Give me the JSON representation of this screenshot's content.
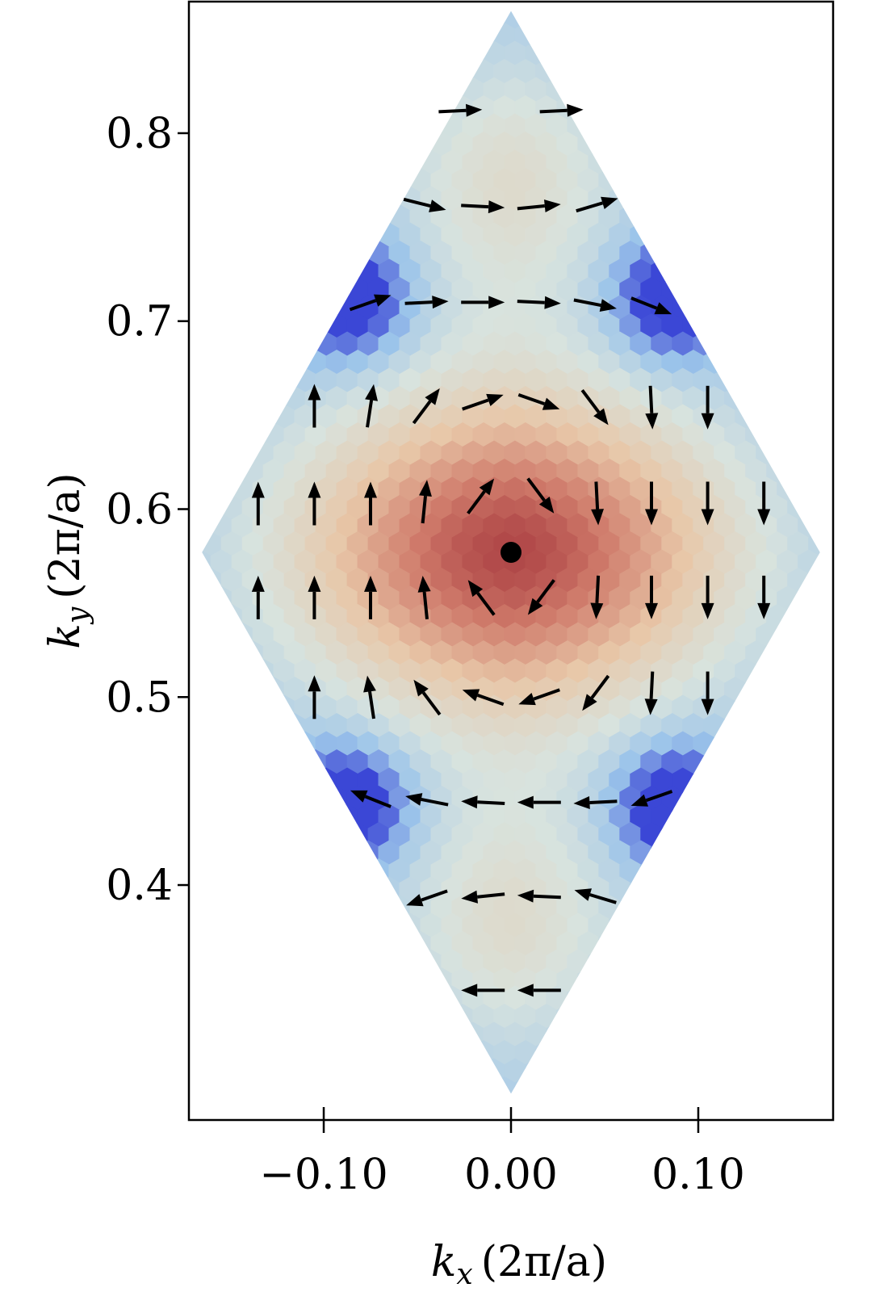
{
  "chart_data": {
    "type": "heatmap",
    "title": "",
    "subtitle": "",
    "xlabel": {
      "var": "k",
      "sub": "x",
      "unit": "(2π/a)"
    },
    "ylabel": {
      "var": "k",
      "sub": "y",
      "unit": "(2π/a)"
    },
    "xlim": [
      -0.172,
      0.172
    ],
    "ylim": [
      0.275,
      0.87
    ],
    "xticks": [
      -0.1,
      0.0,
      0.1
    ],
    "xtick_labels": [
      "−0.10",
      "0.00",
      "0.10"
    ],
    "yticks": [
      0.4,
      0.5,
      0.6,
      0.7,
      0.8
    ],
    "ytick_labels": [
      "0.4",
      "0.5",
      "0.6",
      "0.7",
      "0.8"
    ],
    "grid": false,
    "legend": "none",
    "colormap": [
      "#3b47d6",
      "#9bc4ea",
      "#d8e3de",
      "#e8c7a8",
      "#cf7a6a",
      "#9a2430"
    ],
    "domain_rhombus": {
      "vertices": [
        [
          0.0,
          0.865
        ],
        [
          0.165,
          0.577
        ],
        [
          0.0,
          0.289
        ],
        [
          -0.165,
          0.577
        ]
      ]
    },
    "center_point": {
      "x": 0.0,
      "y": 0.577,
      "color": "#000000"
    },
    "vector_field": [
      {
        "x": -0.027,
        "y": 0.812,
        "u": 1,
        "v": 0.05
      },
      {
        "x": 0.027,
        "y": 0.812,
        "u": 1,
        "v": 0.05
      },
      {
        "x": -0.046,
        "y": 0.762,
        "u": 1,
        "v": -0.25
      },
      {
        "x": -0.015,
        "y": 0.761,
        "u": 1,
        "v": -0.05
      },
      {
        "x": 0.015,
        "y": 0.761,
        "u": 1,
        "v": 0.1
      },
      {
        "x": 0.046,
        "y": 0.762,
        "u": 1,
        "v": 0.3
      },
      {
        "x": -0.075,
        "y": 0.71,
        "u": 1,
        "v": 0.35
      },
      {
        "x": -0.045,
        "y": 0.71,
        "u": 1,
        "v": 0.05
      },
      {
        "x": -0.015,
        "y": 0.71,
        "u": 1,
        "v": 0.0
      },
      {
        "x": 0.015,
        "y": 0.71,
        "u": 1,
        "v": -0.05
      },
      {
        "x": 0.045,
        "y": 0.709,
        "u": 1,
        "v": -0.2
      },
      {
        "x": 0.075,
        "y": 0.708,
        "u": 1,
        "v": -0.4
      },
      {
        "x": -0.105,
        "y": 0.655,
        "u": 0,
        "v": 1
      },
      {
        "x": -0.075,
        "y": 0.655,
        "u": 0.15,
        "v": 1
      },
      {
        "x": -0.045,
        "y": 0.655,
        "u": 0.6,
        "v": 0.8
      },
      {
        "x": -0.015,
        "y": 0.657,
        "u": 1,
        "v": 0.35
      },
      {
        "x": 0.015,
        "y": 0.657,
        "u": 1,
        "v": -0.35
      },
      {
        "x": 0.045,
        "y": 0.654,
        "u": 0.6,
        "v": -0.8
      },
      {
        "x": 0.075,
        "y": 0.654,
        "u": 0.05,
        "v": -1
      },
      {
        "x": 0.105,
        "y": 0.654,
        "u": 0,
        "v": -1
      },
      {
        "x": -0.135,
        "y": 0.603,
        "u": 0,
        "v": 1
      },
      {
        "x": -0.105,
        "y": 0.603,
        "u": 0,
        "v": 1
      },
      {
        "x": -0.075,
        "y": 0.603,
        "u": 0,
        "v": 1
      },
      {
        "x": -0.046,
        "y": 0.604,
        "u": 0.1,
        "v": 1
      },
      {
        "x": -0.016,
        "y": 0.607,
        "u": 0.6,
        "v": 0.8
      },
      {
        "x": 0.016,
        "y": 0.607,
        "u": 0.6,
        "v": -0.8
      },
      {
        "x": 0.046,
        "y": 0.603,
        "u": 0.05,
        "v": -1
      },
      {
        "x": 0.075,
        "y": 0.603,
        "u": 0,
        "v": -1
      },
      {
        "x": 0.105,
        "y": 0.603,
        "u": 0,
        "v": -1
      },
      {
        "x": 0.135,
        "y": 0.603,
        "u": 0,
        "v": -1
      },
      {
        "x": -0.135,
        "y": 0.553,
        "u": 0,
        "v": 1
      },
      {
        "x": -0.105,
        "y": 0.553,
        "u": 0,
        "v": 1
      },
      {
        "x": -0.075,
        "y": 0.553,
        "u": 0,
        "v": 1
      },
      {
        "x": -0.046,
        "y": 0.553,
        "u": -0.1,
        "v": 1
      },
      {
        "x": -0.016,
        "y": 0.553,
        "u": -0.6,
        "v": 0.8
      },
      {
        "x": 0.016,
        "y": 0.553,
        "u": -0.6,
        "v": -0.8
      },
      {
        "x": 0.046,
        "y": 0.553,
        "u": -0.05,
        "v": -1
      },
      {
        "x": 0.075,
        "y": 0.553,
        "u": 0,
        "v": -1
      },
      {
        "x": 0.105,
        "y": 0.553,
        "u": 0,
        "v": -1
      },
      {
        "x": 0.135,
        "y": 0.553,
        "u": 0,
        "v": -1
      },
      {
        "x": -0.105,
        "y": 0.5,
        "u": 0,
        "v": 1
      },
      {
        "x": -0.075,
        "y": 0.5,
        "u": -0.15,
        "v": 1
      },
      {
        "x": -0.045,
        "y": 0.5,
        "u": -0.6,
        "v": 0.8
      },
      {
        "x": -0.015,
        "y": 0.5,
        "u": -1,
        "v": 0.35
      },
      {
        "x": 0.015,
        "y": 0.5,
        "u": -1,
        "v": -0.35
      },
      {
        "x": 0.045,
        "y": 0.502,
        "u": -0.6,
        "v": -0.8
      },
      {
        "x": 0.075,
        "y": 0.502,
        "u": -0.05,
        "v": -1
      },
      {
        "x": 0.105,
        "y": 0.502,
        "u": 0,
        "v": -1
      },
      {
        "x": -0.075,
        "y": 0.446,
        "u": -1,
        "v": 0.4
      },
      {
        "x": -0.045,
        "y": 0.445,
        "u": -1,
        "v": 0.2
      },
      {
        "x": -0.015,
        "y": 0.444,
        "u": -1,
        "v": 0.05
      },
      {
        "x": 0.015,
        "y": 0.444,
        "u": -1,
        "v": 0.0
      },
      {
        "x": 0.045,
        "y": 0.444,
        "u": -1,
        "v": -0.05
      },
      {
        "x": 0.075,
        "y": 0.446,
        "u": -1,
        "v": -0.35
      },
      {
        "x": -0.045,
        "y": 0.393,
        "u": -1,
        "v": -0.35
      },
      {
        "x": -0.015,
        "y": 0.394,
        "u": -1,
        "v": -0.1
      },
      {
        "x": 0.015,
        "y": 0.394,
        "u": -1,
        "v": 0.05
      },
      {
        "x": 0.045,
        "y": 0.394,
        "u": -1,
        "v": 0.3
      },
      {
        "x": -0.015,
        "y": 0.344,
        "u": -1,
        "v": 0.0
      },
      {
        "x": 0.015,
        "y": 0.344,
        "u": -1,
        "v": 0.0
      }
    ]
  }
}
